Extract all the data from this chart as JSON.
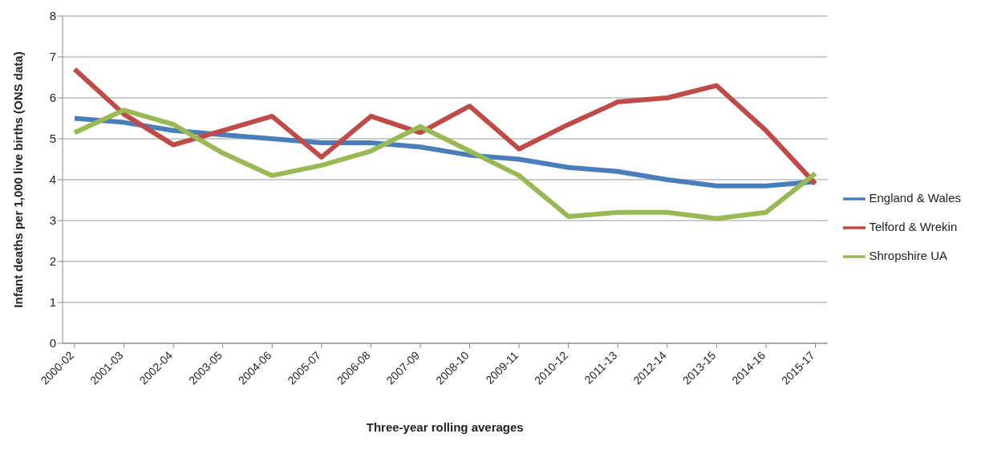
{
  "chart_data": {
    "type": "line",
    "xlabel": "Three-year rolling averages",
    "ylabel": "Infant deaths per 1,000 live births (ONS data)",
    "categories": [
      "2000-02",
      "2001-03",
      "2002-04",
      "2003-05",
      "2004-06",
      "2005-07",
      "2006-08",
      "2007-09",
      "2008-10",
      "2009-11",
      "2010-12",
      "2011-13",
      "2012-14",
      "2013-15",
      "2014-16",
      "2015-17"
    ],
    "series": [
      {
        "name": "England & Wales",
        "color": "#4a7ebb",
        "values": [
          5.5,
          5.4,
          5.2,
          5.1,
          5.0,
          4.9,
          4.9,
          4.8,
          4.6,
          4.5,
          4.3,
          4.2,
          4.0,
          3.85,
          3.85,
          3.95
        ]
      },
      {
        "name": "Telford & Wrekin",
        "color": "#be4b48",
        "values": [
          6.7,
          5.6,
          4.85,
          5.2,
          5.55,
          4.55,
          5.55,
          5.15,
          5.8,
          4.75,
          5.35,
          5.9,
          6.0,
          6.3,
          5.2,
          3.9
        ]
      },
      {
        "name": "Shropshire UA",
        "color": "#98b954",
        "values": [
          5.15,
          5.7,
          5.35,
          4.65,
          4.1,
          4.35,
          4.7,
          5.3,
          4.7,
          4.1,
          3.1,
          3.2,
          3.2,
          3.05,
          3.2,
          4.15
        ]
      }
    ],
    "ylim": [
      0,
      8
    ],
    "yticks": [
      0,
      1,
      2,
      3,
      4,
      5,
      6,
      7,
      8
    ],
    "grid": "y",
    "legend": "right",
    "marker": "none",
    "line_style": "solid"
  }
}
